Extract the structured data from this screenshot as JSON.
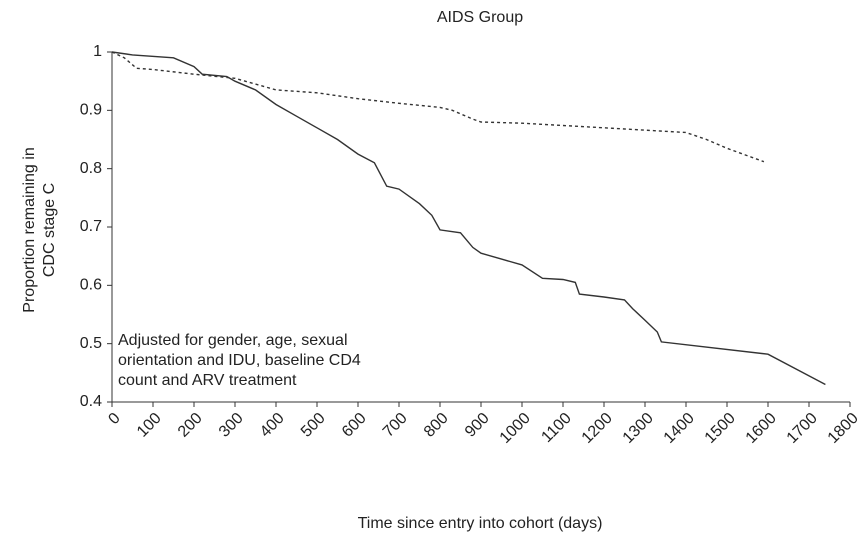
{
  "chart_data": {
    "type": "line",
    "title": "AIDS Group",
    "xlabel": "Time since entry into cohort (days)",
    "ylabel": [
      "Proportion remaining in",
      "CDC stage C"
    ],
    "annotation": [
      "Adjusted for gender, age, sexual",
      "orientation and IDU, baseline CD4",
      "count and ARV treatment"
    ],
    "xlim": [
      0,
      1800
    ],
    "ylim": [
      0.4,
      1
    ],
    "xticks": [
      0,
      100,
      200,
      300,
      400,
      500,
      600,
      700,
      800,
      900,
      1000,
      1100,
      1200,
      1300,
      1400,
      1500,
      1600,
      1700,
      1800
    ],
    "yticks": [
      0.4,
      0.5,
      0.6,
      0.7,
      0.8,
      0.9,
      1
    ],
    "series": [
      {
        "color": "#333333",
        "style": "solid",
        "x": [
          0,
          50,
          150,
          200,
          220,
          280,
          300,
          350,
          400,
          450,
          500,
          550,
          600,
          640,
          670,
          700,
          750,
          780,
          800,
          850,
          880,
          900,
          950,
          1000,
          1050,
          1100,
          1130,
          1140,
          1200,
          1250,
          1270,
          1300,
          1330,
          1340,
          1600,
          1740
        ],
        "values": [
          1,
          0.995,
          0.99,
          0.975,
          0.962,
          0.958,
          0.95,
          0.935,
          0.91,
          0.89,
          0.87,
          0.85,
          0.825,
          0.81,
          0.77,
          0.765,
          0.74,
          0.72,
          0.695,
          0.69,
          0.665,
          0.655,
          0.645,
          0.635,
          0.612,
          0.61,
          0.605,
          0.585,
          0.58,
          0.575,
          0.56,
          0.54,
          0.52,
          0.503,
          0.482,
          0.43
        ]
      },
      {
        "color": "#333333",
        "style": "dashed",
        "x": [
          0,
          30,
          60,
          100,
          200,
          300,
          350,
          400,
          500,
          600,
          700,
          800,
          830,
          880,
          900,
          1000,
          1200,
          1400,
          1450,
          1500,
          1590
        ],
        "values": [
          1,
          0.99,
          0.972,
          0.97,
          0.962,
          0.955,
          0.945,
          0.935,
          0.93,
          0.92,
          0.912,
          0.905,
          0.9,
          0.885,
          0.88,
          0.878,
          0.87,
          0.862,
          0.85,
          0.835,
          0.812
        ]
      }
    ]
  }
}
